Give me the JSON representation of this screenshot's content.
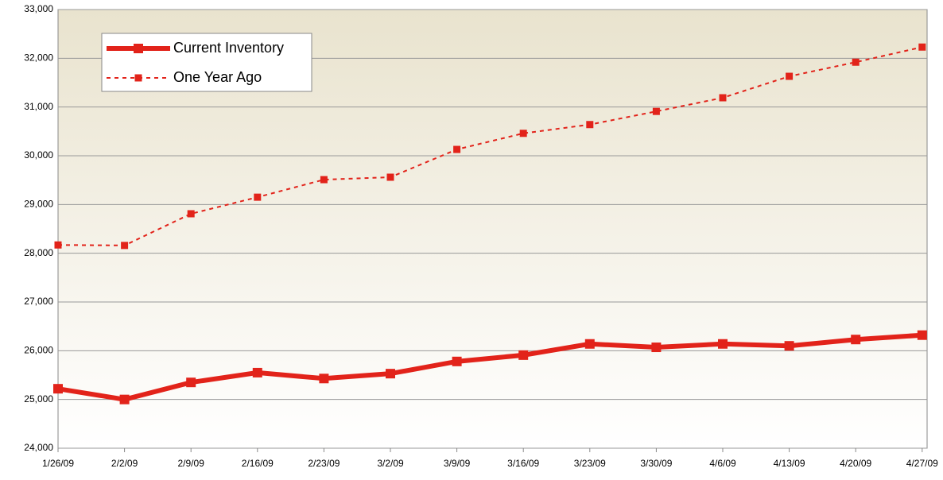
{
  "chart_data": {
    "type": "line",
    "categories": [
      "1/26/09",
      "2/2/09",
      "2/9/09",
      "2/16/09",
      "2/23/09",
      "3/2/09",
      "3/9/09",
      "3/16/09",
      "3/23/09",
      "3/30/09",
      "4/6/09",
      "4/13/09",
      "4/20/09",
      "4/27/09"
    ],
    "series": [
      {
        "name": "Current Inventory",
        "color": "#e2231a",
        "style": "solid",
        "values": [
          25220,
          25000,
          25350,
          25550,
          25430,
          25530,
          25780,
          25910,
          26140,
          26070,
          26140,
          26100,
          26230,
          26320
        ]
      },
      {
        "name": "One Year Ago",
        "color": "#e2231a",
        "style": "dashed",
        "values": [
          28170,
          28160,
          28810,
          29150,
          29510,
          29560,
          30130,
          30460,
          30640,
          30910,
          31190,
          31630,
          31920,
          32230
        ]
      }
    ],
    "ylim": [
      24000,
      33000
    ],
    "yticks": [
      {
        "value": 24000,
        "label": "24,000"
      },
      {
        "value": 25000,
        "label": "25,000"
      },
      {
        "value": 26000,
        "label": "26,000"
      },
      {
        "value": 27000,
        "label": "27,000"
      },
      {
        "value": 28000,
        "label": "28,000"
      },
      {
        "value": 29000,
        "label": "29,000"
      },
      {
        "value": 30000,
        "label": "30,000"
      },
      {
        "value": 31000,
        "label": "31,000"
      },
      {
        "value": 32000,
        "label": "32,000"
      },
      {
        "value": 33000,
        "label": "33,000"
      }
    ],
    "grid": true,
    "legend": "upper left"
  }
}
